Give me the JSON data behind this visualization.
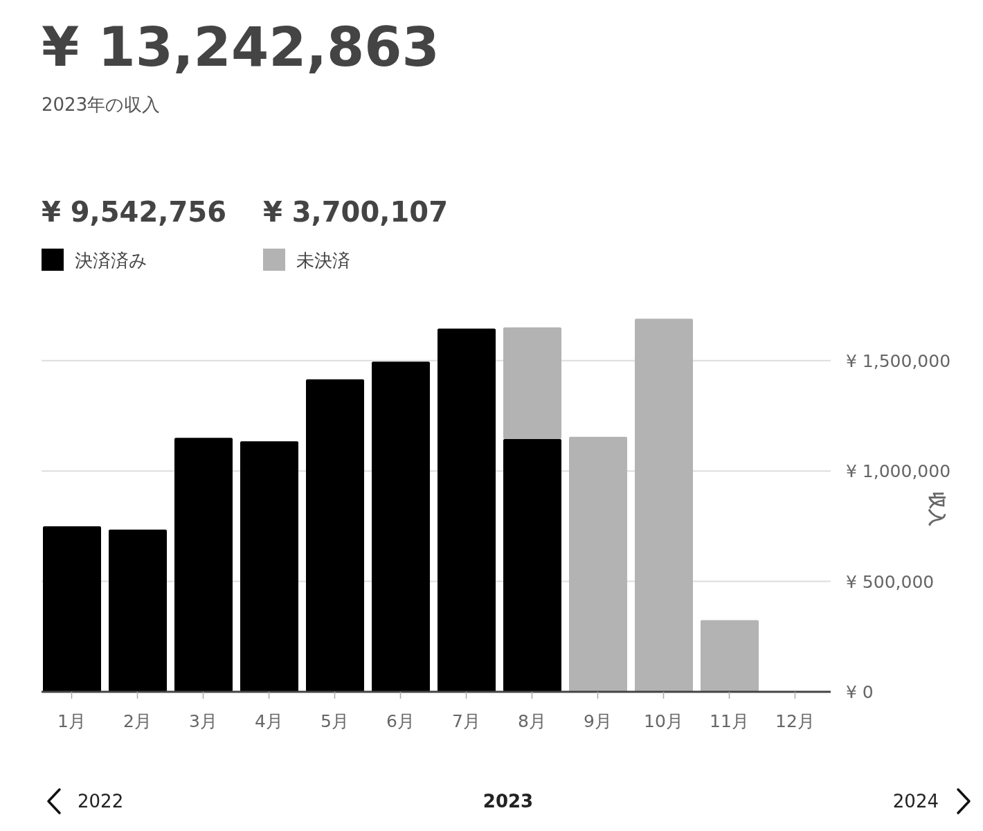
{
  "chart_data": {
    "type": "bar",
    "title": "¥ 13,242,863",
    "subtitle": "2023年の収入",
    "ylabel": "収入",
    "categories": [
      "1月",
      "2月",
      "3月",
      "4月",
      "5月",
      "6月",
      "7月",
      "8月",
      "9月",
      "10月",
      "11月",
      "12月"
    ],
    "series": [
      {
        "name": "決済済み",
        "color": "#000000",
        "values": [
          750000,
          735000,
          1150000,
          1135000,
          1415000,
          1495000,
          1645000,
          1145000,
          null,
          null,
          null,
          null
        ]
      },
      {
        "name": "未決済",
        "color": "#b3b3b3",
        "values": [
          null,
          null,
          null,
          null,
          null,
          null,
          null,
          510000,
          1155000,
          1690000,
          325000,
          null
        ]
      }
    ],
    "stacked": true,
    "ylim": [
      0,
      1700000
    ],
    "yticks": [
      {
        "value": 0,
        "label": "¥ 0"
      },
      {
        "value": 500000,
        "label": "¥ 500,000"
      },
      {
        "value": 1000000,
        "label": "¥ 1,000,000"
      },
      {
        "value": 1500000,
        "label": "¥ 1,500,000"
      }
    ],
    "grid": "y",
    "legend": "top left",
    "annotations": [
      "¥ 9,542,756",
      "¥ 3,700,107",
      "2022",
      "2023",
      "2024"
    ]
  }
}
